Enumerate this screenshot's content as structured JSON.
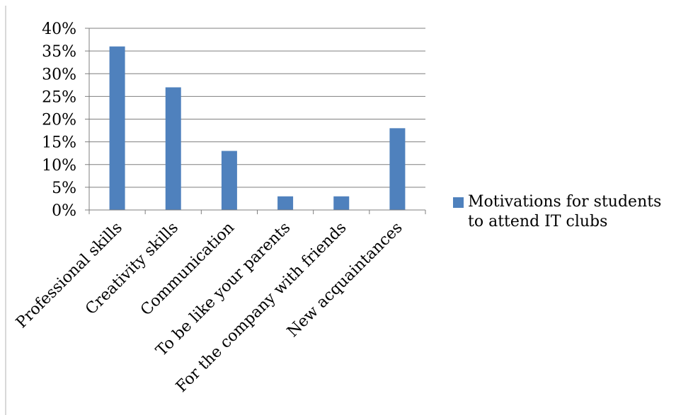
{
  "chart_data": {
    "type": "bar",
    "categories": [
      "Professional skills",
      "Creativity skills",
      "Communication",
      "To be like your parents",
      "For the company with friends",
      "New acquaintances"
    ],
    "series": [
      {
        "name": "Motivations for students to attend IT clubs",
        "values": [
          36,
          27,
          13,
          3,
          3,
          18
        ],
        "color": "#4f81bd"
      }
    ],
    "ylim": [
      0,
      40
    ],
    "yticks": [
      0,
      5,
      10,
      15,
      20,
      25,
      30,
      35,
      40
    ],
    "ytick_labels": [
      "0%",
      "5%",
      "10%",
      "15%",
      "20%",
      "25%",
      "30%",
      "35%",
      "40%"
    ],
    "grid": true,
    "legend_position": "right",
    "title": "",
    "xlabel": "",
    "ylabel": ""
  }
}
